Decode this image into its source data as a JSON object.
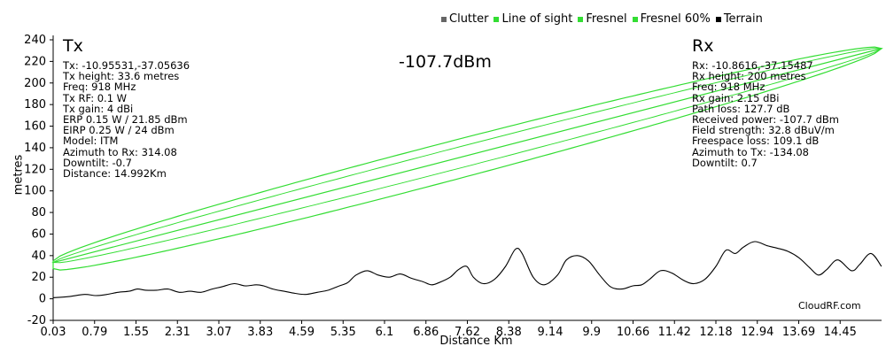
{
  "legend": [
    {
      "label": "Clutter",
      "color": "#666666"
    },
    {
      "label": "Line of sight",
      "color": "#33dd33"
    },
    {
      "label": "Fresnel",
      "color": "#33dd33"
    },
    {
      "label": "Fresnel 60%",
      "color": "#33dd33"
    },
    {
      "label": "Terrain",
      "color": "#000000"
    }
  ],
  "received_power_label": "-107.7dBm",
  "brand": "CloudRF.com",
  "tx": {
    "title": "Tx",
    "lines": [
      "Tx: -10.95531,-37.05636",
      "Tx height: 33.6 metres",
      "Freq: 918 MHz",
      "Tx RF: 0.1 W",
      "Tx gain: 4 dBi",
      "ERP 0.15 W / 21.85 dBm",
      "EIRP 0.25 W / 24 dBm",
      "Model: ITM",
      "Azimuth to Rx: 314.08",
      "Downtilt: -0.7",
      "Distance: 14.992Km"
    ]
  },
  "rx": {
    "title": "Rx",
    "lines": [
      "Rx: -10.8616,-37.15487",
      "Rx height: 200 metres",
      "Freq: 918 MHz",
      "Rx gain: 2.15 dBi",
      "Path loss: 127.7 dB",
      "Received power: -107.7 dBm",
      "Field strength: 32.8 dBuV/m",
      "Freespace loss: 109.1 dB",
      "Azimuth to Tx: -134.08",
      "Downtilt: 0.7"
    ]
  },
  "chart_data": {
    "type": "line",
    "xlabel": "Distance Km",
    "ylabel": "metres",
    "xlim": [
      0.03,
      14.992
    ],
    "ylim": [
      -20,
      240
    ],
    "x_ticks": [
      "0.03",
      "0.79",
      "1.55",
      "2.31",
      "3.07",
      "3.83",
      "4.59",
      "5.35",
      "6.1",
      "6.86",
      "7.62",
      "8.38",
      "9.14",
      "9.9",
      "10.66",
      "11.42",
      "12.18",
      "12.94",
      "13.69",
      "14.45"
    ],
    "y_ticks": [
      -20,
      0,
      20,
      40,
      60,
      80,
      100,
      120,
      140,
      160,
      180,
      200,
      220,
      240
    ],
    "line_of_sight": {
      "start": 33.6,
      "end": 232
    },
    "fresnel": {
      "start_upper": 35,
      "start_lower": 28,
      "max_radius": 16.5,
      "end": 232
    },
    "fresnel_60": {
      "max_radius": 9.9
    },
    "terrain": {
      "x": [
        0.03,
        0.3,
        0.6,
        0.8,
        1.0,
        1.2,
        1.4,
        1.55,
        1.7,
        1.9,
        2.1,
        2.31,
        2.5,
        2.7,
        2.9,
        3.07,
        3.3,
        3.5,
        3.7,
        3.83,
        4.0,
        4.2,
        4.4,
        4.59,
        4.8,
        5.0,
        5.2,
        5.35,
        5.5,
        5.7,
        5.9,
        6.1,
        6.3,
        6.5,
        6.7,
        6.86,
        7.0,
        7.2,
        7.35,
        7.5,
        7.62,
        7.8,
        8.0,
        8.2,
        8.38,
        8.5,
        8.7,
        8.9,
        9.14,
        9.3,
        9.5,
        9.7,
        9.9,
        10.1,
        10.3,
        10.5,
        10.66,
        10.8,
        11.0,
        11.2,
        11.42,
        11.6,
        11.8,
        12.0,
        12.18,
        12.35,
        12.5,
        12.7,
        12.94,
        13.1,
        13.3,
        13.5,
        13.69,
        13.85,
        14.0,
        14.2,
        14.45,
        14.6,
        14.8,
        14.99
      ],
      "y": [
        1,
        2,
        4,
        3,
        4,
        6,
        7,
        9,
        8,
        8,
        9,
        6,
        7,
        6,
        9,
        11,
        14,
        12,
        13,
        12,
        9,
        7,
        5,
        4,
        6,
        8,
        12,
        15,
        22,
        26,
        22,
        20,
        23,
        19,
        16,
        13,
        15,
        20,
        27,
        30,
        20,
        14,
        18,
        30,
        46,
        42,
        20,
        13,
        22,
        36,
        40,
        35,
        22,
        11,
        9,
        12,
        13,
        18,
        26,
        24,
        17,
        14,
        18,
        30,
        45,
        42,
        48,
        53,
        49,
        47,
        44,
        38,
        29,
        22,
        27,
        36,
        26,
        32,
        42,
        30
      ]
    }
  }
}
